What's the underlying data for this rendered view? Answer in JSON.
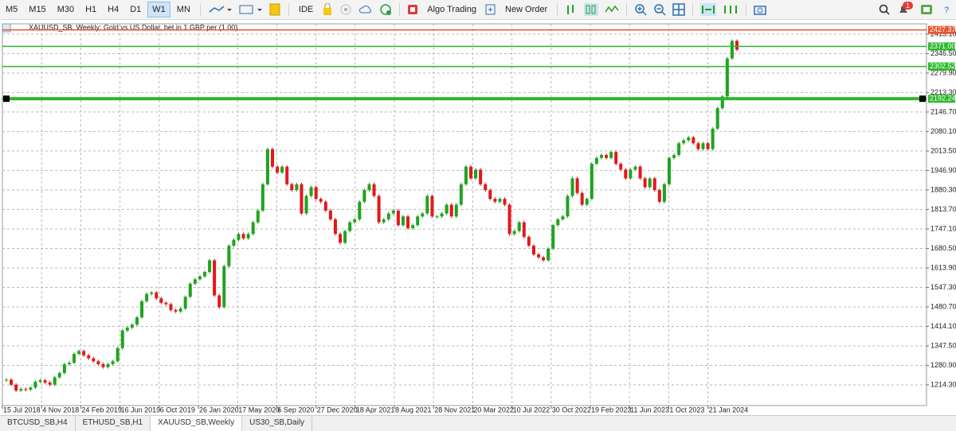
{
  "toolbar": {
    "timeframes": [
      "M5",
      "M15",
      "M30",
      "H1",
      "H4",
      "D1",
      "W1",
      "MN"
    ],
    "active_timeframe_index": 6,
    "ide": "IDE",
    "algo_trading": "Algo Trading",
    "new_order": "New Order",
    "notifications": 1
  },
  "chart": {
    "header": "XAUUSD_SB, Weekly:  Gold vs US Dollar, bet in 1 GBP per (1.00)",
    "type": "candlestick",
    "up_color": "#1fa31f",
    "down_color": "#e3171b",
    "grid": true,
    "closes": [
      1232,
      1215,
      1195,
      1200,
      1198,
      1205,
      1225,
      1230,
      1222,
      1215,
      1240,
      1255,
      1285,
      1290,
      1320,
      1330,
      1315,
      1305,
      1295,
      1285,
      1275,
      1285,
      1295,
      1340,
      1400,
      1410,
      1420,
      1445,
      1500,
      1525,
      1530,
      1510,
      1495,
      1490,
      1470,
      1465,
      1475,
      1515,
      1560,
      1575,
      1585,
      1600,
      1640,
      1520,
      1480,
      1620,
      1690,
      1710,
      1730,
      1715,
      1730,
      1770,
      1810,
      1900,
      2020,
      1960,
      1940,
      1960,
      1900,
      1880,
      1900,
      1800,
      1860,
      1890,
      1850,
      1840,
      1810,
      1780,
      1730,
      1700,
      1740,
      1770,
      1780,
      1840,
      1880,
      1900,
      1860,
      1770,
      1780,
      1800,
      1810,
      1760,
      1790,
      1750,
      1760,
      1790,
      1800,
      1860,
      1790,
      1790,
      1800,
      1830,
      1790,
      1830,
      1900,
      1960,
      1920,
      1950,
      1900,
      1880,
      1850,
      1840,
      1850,
      1830,
      1730,
      1740,
      1770,
      1720,
      1690,
      1660,
      1650,
      1640,
      1680,
      1760,
      1780,
      1790,
      1860,
      1920,
      1870,
      1830,
      1850,
      1970,
      1990,
      2000,
      1990,
      2010,
      1970,
      1950,
      1920,
      1950,
      1960,
      1920,
      1890,
      1920,
      1880,
      1840,
      1900,
      1990,
      2000,
      2040,
      2050,
      2060,
      2040,
      2020,
      2040,
      2020,
      2090,
      2160,
      2200,
      2330,
      2390,
      2360
    ],
    "ylim": [
      1149,
      2440
    ],
    "yticks": [
      {
        "value": 2413.1,
        "label": "2413.10"
      },
      {
        "value": 2346.5,
        "label": "2346.50"
      },
      {
        "value": 2279.9,
        "label": "2279.90"
      },
      {
        "value": 2213.3,
        "label": "2213.30"
      },
      {
        "value": 2146.7,
        "label": "2146.70"
      },
      {
        "value": 2080.1,
        "label": "2080.10"
      },
      {
        "value": 2013.5,
        "label": "2013.50"
      },
      {
        "value": 1946.9,
        "label": "1946.90"
      },
      {
        "value": 1880.3,
        "label": "1880.30"
      },
      {
        "value": 1813.7,
        "label": "1813.70"
      },
      {
        "value": 1747.1,
        "label": "1747.10"
      },
      {
        "value": 1680.5,
        "label": "1680.50"
      },
      {
        "value": 1613.9,
        "label": "1613.90"
      },
      {
        "value": 1547.3,
        "label": "1547.30"
      },
      {
        "value": 1480.7,
        "label": "1480.70"
      },
      {
        "value": 1414.1,
        "label": "1414.10"
      },
      {
        "value": 1347.5,
        "label": "1347.50"
      },
      {
        "value": 1280.9,
        "label": "1280.90"
      },
      {
        "value": 1214.3,
        "label": "1214.30"
      }
    ],
    "x_labels": [
      "15 Jul 2018",
      "4 Nov 2018",
      "24 Feb 2019",
      "16 Jun 2019",
      "6 Oct 2019",
      "26 Jan 2020",
      "17 May 2020",
      "6 Sep 2020",
      "27 Dec 2020",
      "18 Apr 2021",
      "8 Aug 2021",
      "28 Nov 2021",
      "20 Mar 2022",
      "10 Jul 2022",
      "30 Oct 2022",
      "19 Feb 2023",
      "11 Jun 2023",
      "1 Oct 2023",
      "21 Jan 2024"
    ],
    "levels": [
      {
        "price": 2427.37,
        "color": "#e8542e"
      },
      {
        "price": {
          "value": 2371,
          "label": "2371.00"
        },
        "color": "#2db82d"
      },
      {
        "price": 2302.52,
        "color": "#2db82d"
      },
      {
        "price": 2192.24,
        "color": "#2db82d",
        "selected": true
      }
    ]
  },
  "tabs": {
    "items": [
      "BTCUSD_SB,H4",
      "ETHUSD_SB,H1",
      "XAUUSD_SB,Weekly",
      "US30_SB,Daily"
    ],
    "active_index": 2
  }
}
